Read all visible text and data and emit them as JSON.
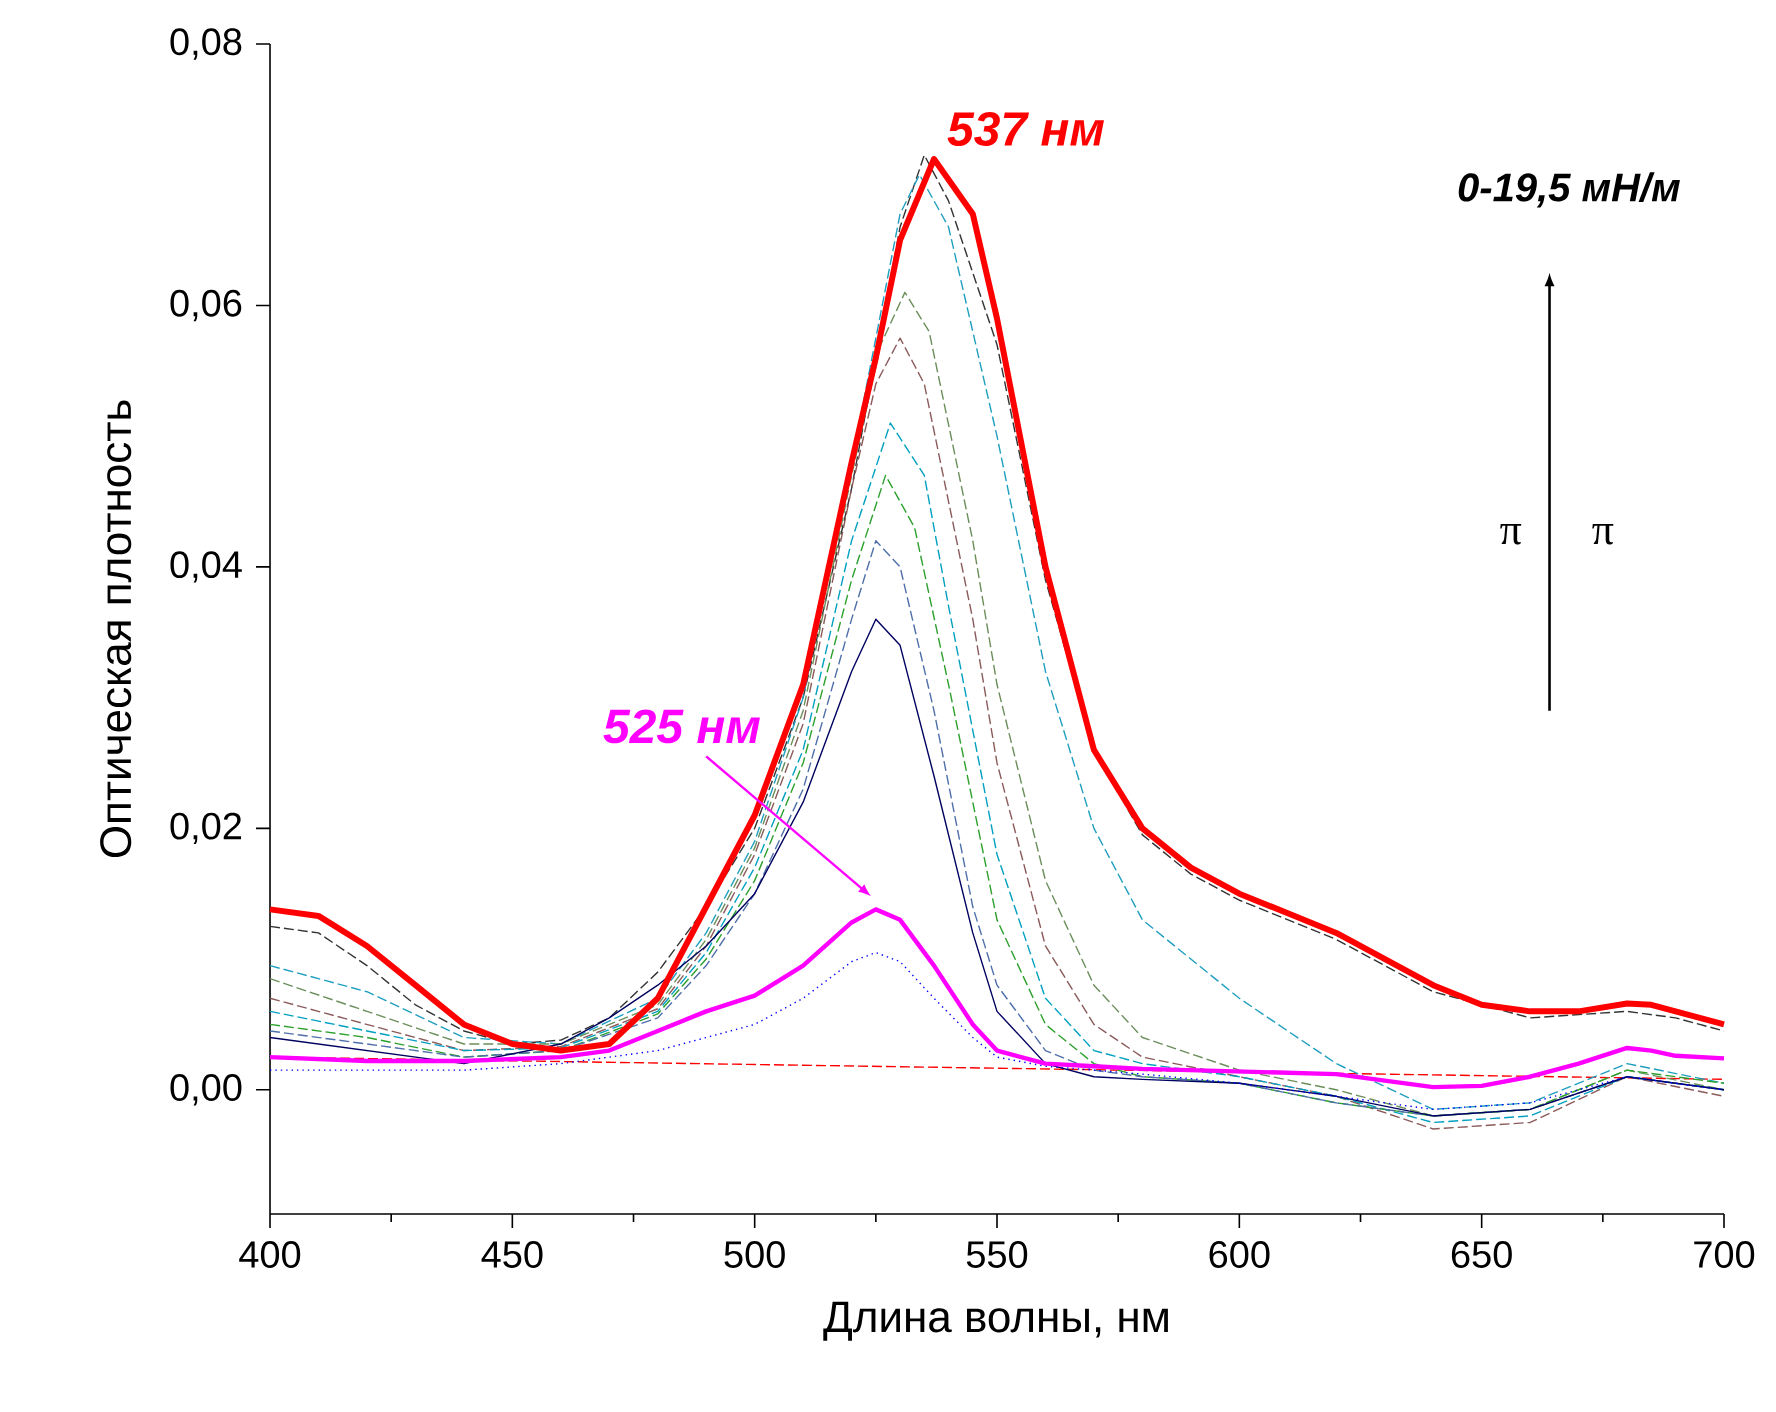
{
  "chart_data": {
    "type": "line",
    "xlabel": "Длина волны, нм",
    "ylabel": "Оптическая плотность",
    "xlim": [
      400,
      700
    ],
    "xticks": [
      400,
      450,
      500,
      550,
      600,
      650,
      700
    ],
    "ylim": [
      -0.0095,
      0.08
    ],
    "yticks": [
      {
        "value": 0,
        "label": "0,00"
      },
      {
        "value": 0.02,
        "label": "0,02"
      },
      {
        "value": 0.04,
        "label": "0,04"
      },
      {
        "value": 0.06,
        "label": "0,06"
      },
      {
        "value": 0.08,
        "label": "0,08"
      }
    ],
    "grid": false,
    "marker": "none",
    "annotations": [
      {
        "text": "537 нм",
        "x": 537,
        "y": 0.0712
      },
      "525 нм",
      "0-19,5 мН/м",
      "π",
      "π"
    ],
    "series": [
      {
        "color": "#ff0000",
        "line_style": "dashed",
        "x": [
          400,
          700
        ],
        "values": [
          0.0025,
          0.0008
        ]
      },
      {
        "color": "#333333",
        "line_style": "dashed",
        "x": [
          400,
          410,
          420,
          430,
          440,
          450,
          460,
          470,
          480,
          490,
          500,
          510,
          520,
          530,
          535,
          540,
          550,
          560,
          570,
          580,
          590,
          600,
          620,
          640,
          660,
          680,
          690,
          700
        ],
        "values": [
          0.0125,
          0.012,
          0.0095,
          0.0065,
          0.0045,
          0.0035,
          0.0038,
          0.0055,
          0.009,
          0.014,
          0.02,
          0.03,
          0.046,
          0.066,
          0.0715,
          0.068,
          0.057,
          0.039,
          0.026,
          0.0195,
          0.0165,
          0.0145,
          0.0115,
          0.0075,
          0.0055,
          0.006,
          0.0055,
          0.0045
        ]
      },
      {
        "color": "#1f9fbf",
        "line_style": "dashed",
        "x": [
          400,
          420,
          440,
          460,
          480,
          490,
          500,
          510,
          520,
          530,
          534,
          540,
          550,
          560,
          570,
          580,
          600,
          620,
          640,
          660,
          680,
          700
        ],
        "values": [
          0.0095,
          0.0075,
          0.004,
          0.0035,
          0.007,
          0.012,
          0.019,
          0.03,
          0.048,
          0.067,
          0.07,
          0.066,
          0.05,
          0.032,
          0.02,
          0.013,
          0.007,
          0.002,
          -0.0015,
          -0.001,
          0.002,
          0.0005
        ]
      },
      {
        "color": "#6b8e5a",
        "line_style": "dashed",
        "x": [
          400,
          420,
          440,
          460,
          480,
          490,
          500,
          510,
          520,
          526,
          531,
          536,
          545,
          550,
          560,
          570,
          580,
          600,
          620,
          640,
          660,
          680,
          700
        ],
        "values": [
          0.0085,
          0.006,
          0.0035,
          0.0035,
          0.0065,
          0.0115,
          0.0185,
          0.029,
          0.047,
          0.057,
          0.061,
          0.058,
          0.042,
          0.031,
          0.016,
          0.008,
          0.004,
          0.0015,
          0.0,
          -0.002,
          -0.0015,
          0.0015,
          0.0
        ]
      },
      {
        "color": "#8b5a5a",
        "line_style": "dashed",
        "x": [
          400,
          420,
          440,
          460,
          480,
          490,
          500,
          510,
          520,
          525,
          530,
          535,
          545,
          550,
          560,
          570,
          580,
          600,
          620,
          640,
          660,
          680,
          700
        ],
        "values": [
          0.007,
          0.005,
          0.003,
          0.0033,
          0.0062,
          0.011,
          0.018,
          0.028,
          0.046,
          0.054,
          0.0575,
          0.054,
          0.036,
          0.025,
          0.011,
          0.005,
          0.0025,
          0.001,
          -0.0005,
          -0.003,
          -0.0025,
          0.001,
          -0.0005
        ]
      },
      {
        "color": "#00a0c0",
        "line_style": "dashed",
        "x": [
          400,
          420,
          440,
          460,
          480,
          490,
          500,
          510,
          520,
          528,
          535,
          540,
          550,
          560,
          570,
          580,
          600,
          620,
          640,
          660,
          680,
          700
        ],
        "values": [
          0.006,
          0.0045,
          0.003,
          0.0032,
          0.006,
          0.0105,
          0.017,
          0.026,
          0.042,
          0.051,
          0.047,
          0.037,
          0.018,
          0.007,
          0.003,
          0.002,
          0.001,
          -0.0005,
          -0.0025,
          -0.002,
          0.001,
          0.0
        ]
      },
      {
        "color": "#2ca02c",
        "line_style": "dashed",
        "x": [
          400,
          420,
          440,
          460,
          480,
          490,
          500,
          510,
          520,
          527,
          533,
          540,
          550,
          560,
          570,
          580,
          600,
          620,
          640,
          660,
          680,
          700
        ],
        "values": [
          0.005,
          0.004,
          0.0025,
          0.003,
          0.0058,
          0.01,
          0.016,
          0.025,
          0.039,
          0.047,
          0.043,
          0.031,
          0.013,
          0.005,
          0.002,
          0.001,
          0.0005,
          -0.001,
          -0.002,
          -0.0015,
          0.0015,
          0.0005
        ]
      },
      {
        "color": "#4f6faa",
        "line_style": "dashed",
        "x": [
          400,
          420,
          440,
          460,
          480,
          490,
          500,
          510,
          520,
          525,
          530,
          537,
          545,
          550,
          560,
          570,
          580,
          600,
          620,
          640,
          660,
          680,
          700
        ],
        "values": [
          0.0045,
          0.0035,
          0.0025,
          0.003,
          0.0055,
          0.0095,
          0.015,
          0.023,
          0.036,
          0.042,
          0.04,
          0.029,
          0.014,
          0.008,
          0.003,
          0.0015,
          0.001,
          0.0005,
          -0.001,
          -0.002,
          -0.0015,
          0.001,
          0.0
        ]
      },
      {
        "color": "#000060",
        "line_style": "solid",
        "x": [
          400,
          420,
          440,
          460,
          470,
          480,
          490,
          500,
          510,
          520,
          525,
          530,
          537,
          545,
          550,
          560,
          570,
          580,
          600,
          620,
          640,
          660,
          680,
          700
        ],
        "values": [
          0.004,
          0.003,
          0.002,
          0.0035,
          0.0055,
          0.008,
          0.011,
          0.015,
          0.022,
          0.032,
          0.036,
          0.034,
          0.024,
          0.012,
          0.006,
          0.002,
          0.001,
          0.0008,
          0.0005,
          -0.0005,
          -0.002,
          -0.0015,
          0.001,
          0.0
        ]
      },
      {
        "color": "#0000ff",
        "line_style": "dotted",
        "x": [
          400,
          440,
          460,
          480,
          500,
          510,
          520,
          525,
          530,
          537,
          545,
          550,
          560,
          580,
          600,
          620,
          640,
          660,
          680,
          690,
          700
        ],
        "values": [
          0.0015,
          0.0015,
          0.002,
          0.003,
          0.005,
          0.007,
          0.0098,
          0.0105,
          0.0098,
          0.007,
          0.004,
          0.0025,
          0.0018,
          0.0012,
          0.0005,
          -0.0005,
          -0.0015,
          -0.001,
          0.001,
          0.0005,
          0.0
        ]
      },
      {
        "color": "#ff00ff",
        "line_style": "solid",
        "x": [
          400,
          420,
          440,
          460,
          470,
          480,
          490,
          500,
          510,
          520,
          525,
          530,
          537,
          545,
          550,
          560,
          570,
          580,
          600,
          620,
          640,
          650,
          660,
          670,
          680,
          685,
          690,
          700
        ],
        "values": [
          0.0025,
          0.0022,
          0.0022,
          0.0025,
          0.003,
          0.0045,
          0.006,
          0.0072,
          0.0095,
          0.0128,
          0.0138,
          0.013,
          0.0095,
          0.005,
          0.003,
          0.002,
          0.0018,
          0.0016,
          0.0014,
          0.0012,
          0.0002,
          0.0003,
          0.001,
          0.002,
          0.0032,
          0.003,
          0.0026,
          0.0024
        ]
      },
      {
        "color": "#ff0000",
        "line_style": "solid",
        "x": [
          400,
          410,
          420,
          430,
          440,
          450,
          460,
          470,
          480,
          490,
          500,
          510,
          520,
          525,
          530,
          537,
          545,
          550,
          560,
          570,
          580,
          590,
          600,
          610,
          620,
          630,
          640,
          650,
          660,
          670,
          680,
          685,
          690,
          700
        ],
        "values": [
          0.0138,
          0.0133,
          0.011,
          0.008,
          0.005,
          0.0035,
          0.003,
          0.0035,
          0.007,
          0.014,
          0.021,
          0.031,
          0.048,
          0.056,
          0.065,
          0.0712,
          0.067,
          0.059,
          0.04,
          0.026,
          0.02,
          0.017,
          0.015,
          0.0135,
          0.012,
          0.01,
          0.008,
          0.0065,
          0.006,
          0.006,
          0.0066,
          0.0065,
          0.006,
          0.005
        ]
      }
    ]
  }
}
